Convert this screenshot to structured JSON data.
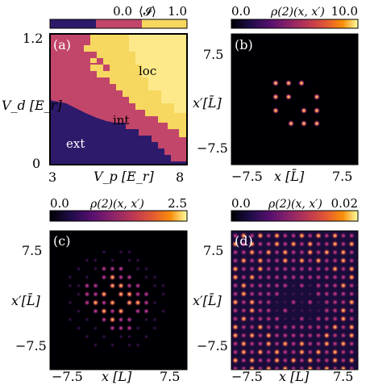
{
  "figure": {
    "panels": [
      {
        "id": "a",
        "label": "(a)",
        "colorbar": {
          "min": "0.0",
          "max": "1.0",
          "label": "⟨𝓘⟩",
          "colors": [
            "#2e1a6b",
            "#c2456a",
            "#f6d860"
          ]
        },
        "xlabel": "V_p [E_r]",
        "ylabel": "V_d [E_r]",
        "xticks": [
          "3",
          "8"
        ],
        "yticks": [
          "1.2",
          "0"
        ],
        "regions": [
          "loc",
          "int",
          "ext"
        ]
      },
      {
        "id": "b",
        "label": "(b)",
        "colorbar": {
          "min": "0.0",
          "max": "10.0",
          "label": "ρ(2)(x, x′)"
        },
        "xlabel": "x [L̄]",
        "ylabel": "x′[L̄]",
        "xticks": [
          "−7.5",
          "7.5"
        ],
        "yticks": [
          "7.5",
          "−7.5"
        ]
      },
      {
        "id": "c",
        "label": "(c)",
        "colorbar": {
          "min": "0.0",
          "max": "2.5",
          "label": "ρ(2)(x, x′)"
        },
        "ylabel": "x′[L̄]",
        "xlabel": "x [L̄]",
        "xticks": [
          "−7.5",
          "7.5"
        ],
        "yticks": [
          "7.5",
          "−7.5"
        ]
      },
      {
        "id": "d",
        "label": "(d)",
        "colorbar": {
          "min": "0.0",
          "max": "0.02",
          "label": "ρ(2)(x, x′)"
        },
        "ylabel": "x′[L̄]",
        "xlabel": "x [L̄]",
        "xticks": [
          "−7.5",
          "7.5"
        ],
        "yticks": [
          "7.5",
          "−7.5"
        ]
      }
    ],
    "colormap": "inferno"
  }
}
